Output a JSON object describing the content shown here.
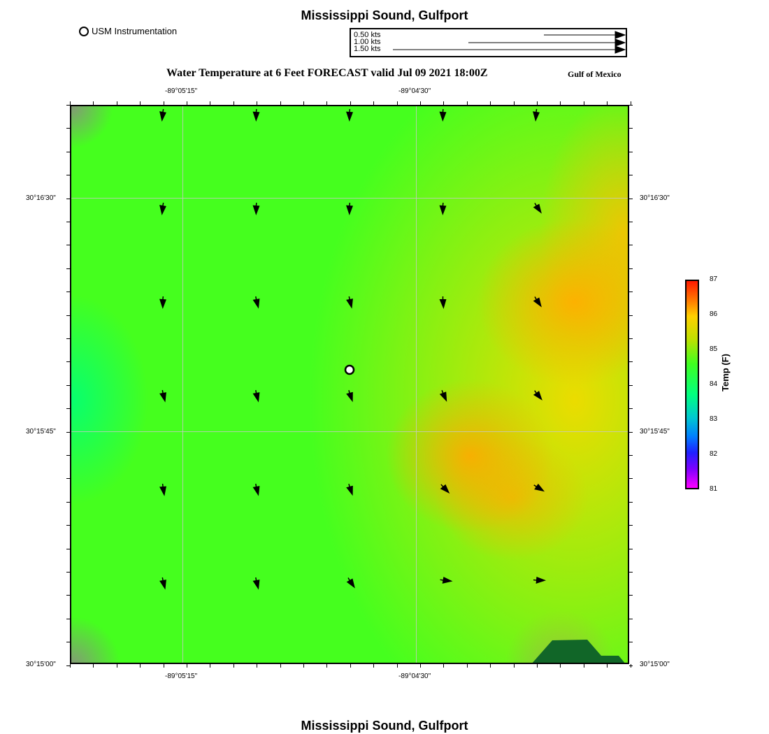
{
  "title": "Mississippi Sound, Gulfport",
  "footer_title": "Mississippi Sound, Gulfport",
  "station_legend": "USM Instrumentation",
  "vector_legend": [
    "0.50 kts",
    "1.00 kts",
    "1.50 kts"
  ],
  "subtitle": "Water Temperature at 6 Feet FORECAST valid Jul 09 2021 18:00Z",
  "region": "Gulf of Mexico",
  "x_labels": [
    "-89°05'15\"",
    "-89°04'30\""
  ],
  "y_labels": [
    "30°16'30\"",
    "30°15'45\"",
    "30°15'00\""
  ],
  "colorbar": {
    "title": "Temp (F)",
    "ticks": [
      "87",
      "86",
      "85",
      "84",
      "83",
      "82",
      "81"
    ],
    "min": 81,
    "max": 87
  },
  "current_vectors_deg": [
    [
      190,
      185,
      185,
      185,
      188
    ],
    [
      190,
      185,
      185,
      185,
      150
    ],
    [
      185,
      170,
      170,
      180,
      150
    ],
    [
      170,
      170,
      165,
      160,
      145
    ],
    [
      175,
      170,
      165,
      140,
      125
    ],
    [
      170,
      170,
      150,
      100,
      95
    ]
  ]
}
